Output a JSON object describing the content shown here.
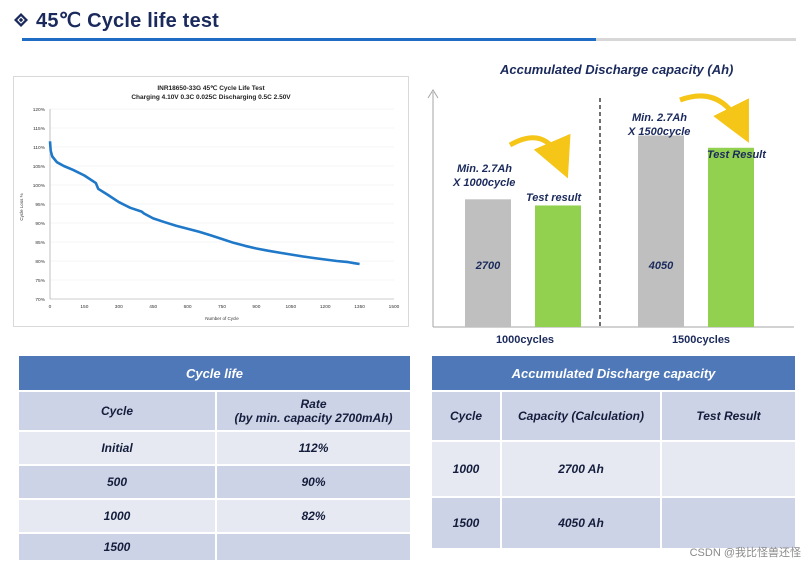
{
  "header": {
    "title": "45℃ Cycle life test",
    "accent": "#1f6cc4"
  },
  "left_chart": {
    "chart_data": {
      "type": "line",
      "title": "INR18650-33G 45℃ Cycle Life Test",
      "subtitle": "Charging 4.10V 0.3C 0.025C Discharging  0.5C 2.50V",
      "xlabel": "Number of Cycle",
      "ylabel": "Cycle Loss %",
      "xlim": [
        0,
        1500
      ],
      "ylim": [
        70,
        120
      ],
      "x_ticks": [
        "0",
        "150",
        "300",
        "450",
        "600",
        "750",
        "900",
        "1050",
        "1200",
        "1350",
        "1500"
      ],
      "y_ticks": [
        "70%",
        "75%",
        "80%",
        "85%",
        "90%",
        "95%",
        "100%",
        "105%",
        "110%",
        "115%",
        "120%"
      ],
      "series": [
        {
          "name": "Cycle Loss",
          "x": [
            0,
            3,
            10,
            30,
            60,
            100,
            150,
            200,
            210,
            250,
            300,
            350,
            400,
            410,
            450,
            500,
            550,
            600,
            650,
            700,
            750,
            800,
            850,
            900,
            950,
            1000,
            1050,
            1100,
            1150,
            1200,
            1250,
            1300,
            1330,
            1350
          ],
          "y": [
            111.5,
            109,
            107.5,
            106,
            105,
            104,
            102.5,
            100.5,
            99,
            97.5,
            95.5,
            94,
            93,
            92.5,
            91.2,
            90.2,
            89.3,
            88.5,
            87.7,
            86.8,
            85.8,
            84.8,
            84.0,
            83.3,
            82.7,
            82.2,
            81.7,
            81.2,
            80.8,
            80.4,
            80.0,
            79.7,
            79.4,
            79.2
          ]
        }
      ]
    },
    "line_color": "#1f78c8"
  },
  "right_chart": {
    "chart_data": {
      "type": "bar",
      "title": "Accumulated Discharge capacity (Ah)",
      "categories": [
        "1000cycles",
        "1500cycles"
      ],
      "series": [
        {
          "name": "Min. capacity",
          "values": [
            2700,
            4050
          ],
          "color": "#bfbfbf"
        },
        {
          "name": "Test result",
          "values": [
            2570,
            3790
          ],
          "color": "#92d050"
        }
      ],
      "ylim": [
        0,
        4800
      ],
      "bar_labels": [
        "2700",
        "4050"
      ],
      "annotations": {
        "min_1000": "Min. 2.7Ah",
        "min_1000_sub": "X 1000cycle",
        "result_1000": "Test result",
        "min_1500": "Min. 2.7Ah",
        "min_1500_sub": "X 1500cycle",
        "result_1500": "Test Result"
      }
    },
    "arrow_color": "#f5c518"
  },
  "cycle_table": {
    "title": "Cycle life",
    "col_cycle": "Cycle",
    "col_rate_line1": "Rate",
    "col_rate_line2": "(by min. capacity 2700mAh)",
    "rows": [
      {
        "cycle": "Initial",
        "rate": "112%"
      },
      {
        "cycle": "500",
        "rate": "90%"
      },
      {
        "cycle": "1000",
        "rate": "82%"
      },
      {
        "cycle": "1500",
        "rate": ""
      }
    ]
  },
  "capacity_table": {
    "title": "Accumulated Discharge capacity",
    "col_cycle": "Cycle",
    "col_capacity": "Capacity (Calculation)",
    "col_result": "Test Result",
    "rows": [
      {
        "cycle": "1000",
        "capacity": "2700 Ah",
        "result": ""
      },
      {
        "cycle": "1500",
        "capacity": "4050 Ah",
        "result": ""
      }
    ]
  },
  "watermark": "CSDN @我比怪兽还怪"
}
